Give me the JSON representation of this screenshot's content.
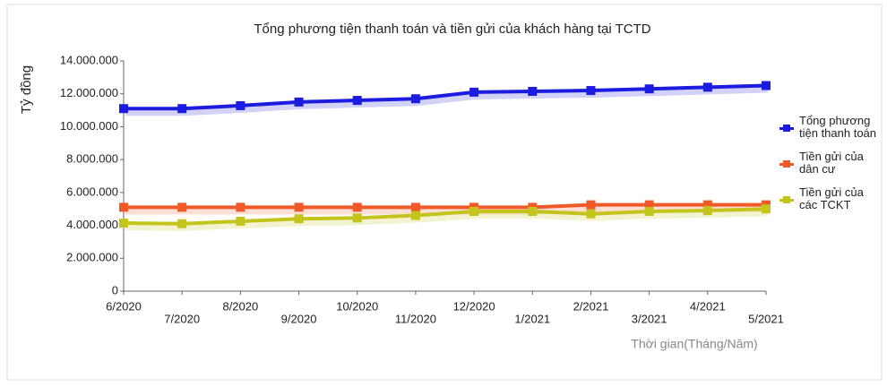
{
  "chart_data": {
    "type": "line",
    "title": "Tổng phương tiện thanh toán và tiền gửi của khách hàng tại TCTD",
    "y_label": "Tỷ đồng",
    "x_label": "Thời gian(Tháng/Năm)",
    "categories": [
      "6/2020",
      "7/2020",
      "8/2020",
      "9/2020",
      "10/2020",
      "11/2020",
      "12/2020",
      "1/2021",
      "2/2021",
      "3/2021",
      "4/2021",
      "5/2021"
    ],
    "series": [
      {
        "name": "Tổng phương tiện thanh toán",
        "color": "#1c1ce0",
        "values": [
          11100000,
          11100000,
          11280000,
          11500000,
          11600000,
          11700000,
          12100000,
          12150000,
          12200000,
          12300000,
          12400000,
          12500000
        ]
      },
      {
        "name": "Tiền gửi của dân cư",
        "color": "#f05a28",
        "values": [
          5100000,
          5100000,
          5100000,
          5100000,
          5100000,
          5100000,
          5100000,
          5100000,
          5250000,
          5250000,
          5250000,
          5250000
        ]
      },
      {
        "name": "Tiền gửi của các TCKT",
        "color": "#c3c41c",
        "values": [
          4140000,
          4100000,
          4250000,
          4400000,
          4450000,
          4600000,
          4850000,
          4850000,
          4700000,
          4850000,
          4900000,
          5000000
        ]
      }
    ],
    "ylim": [
      0,
      14000000
    ],
    "yticks": [
      0,
      {
        "value": 2000000,
        "label": "2.000.000"
      },
      {
        "value": 4000000,
        "label": "4.000.000"
      },
      {
        "value": 6000000,
        "label": "6.000.000"
      },
      {
        "value": 8000000,
        "label": "8.000.000"
      },
      {
        "value": 10000000,
        "label": "10.000.000"
      },
      {
        "value": 12000000,
        "label": "12.000.000"
      },
      {
        "value": 14000000,
        "label": "14.000.000"
      }
    ],
    "legend": "right"
  }
}
